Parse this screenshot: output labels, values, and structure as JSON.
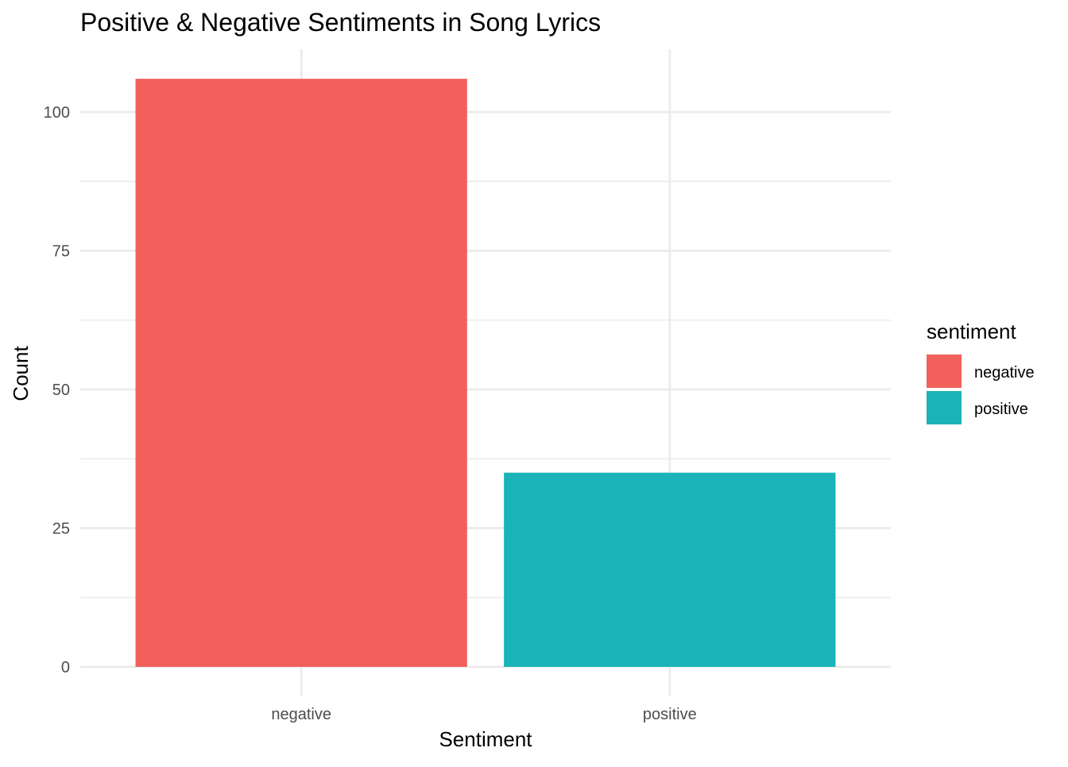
{
  "chart_data": {
    "type": "bar",
    "title": "Positive & Negative Sentiments in Song Lyrics",
    "xlabel": "Sentiment",
    "ylabel": "Count",
    "categories": [
      "negative",
      "positive"
    ],
    "values": [
      106,
      35
    ],
    "colors": [
      "#F2605C",
      "#1AB3B8"
    ],
    "ylim": [
      0,
      110
    ],
    "yticks": [
      0,
      25,
      50,
      75,
      100
    ],
    "grid": true,
    "legend": {
      "title": "sentiment",
      "placement": "right",
      "entries": [
        {
          "label": "negative",
          "color": "#F2605C"
        },
        {
          "label": "positive",
          "color": "#1AB3B8"
        }
      ]
    }
  }
}
